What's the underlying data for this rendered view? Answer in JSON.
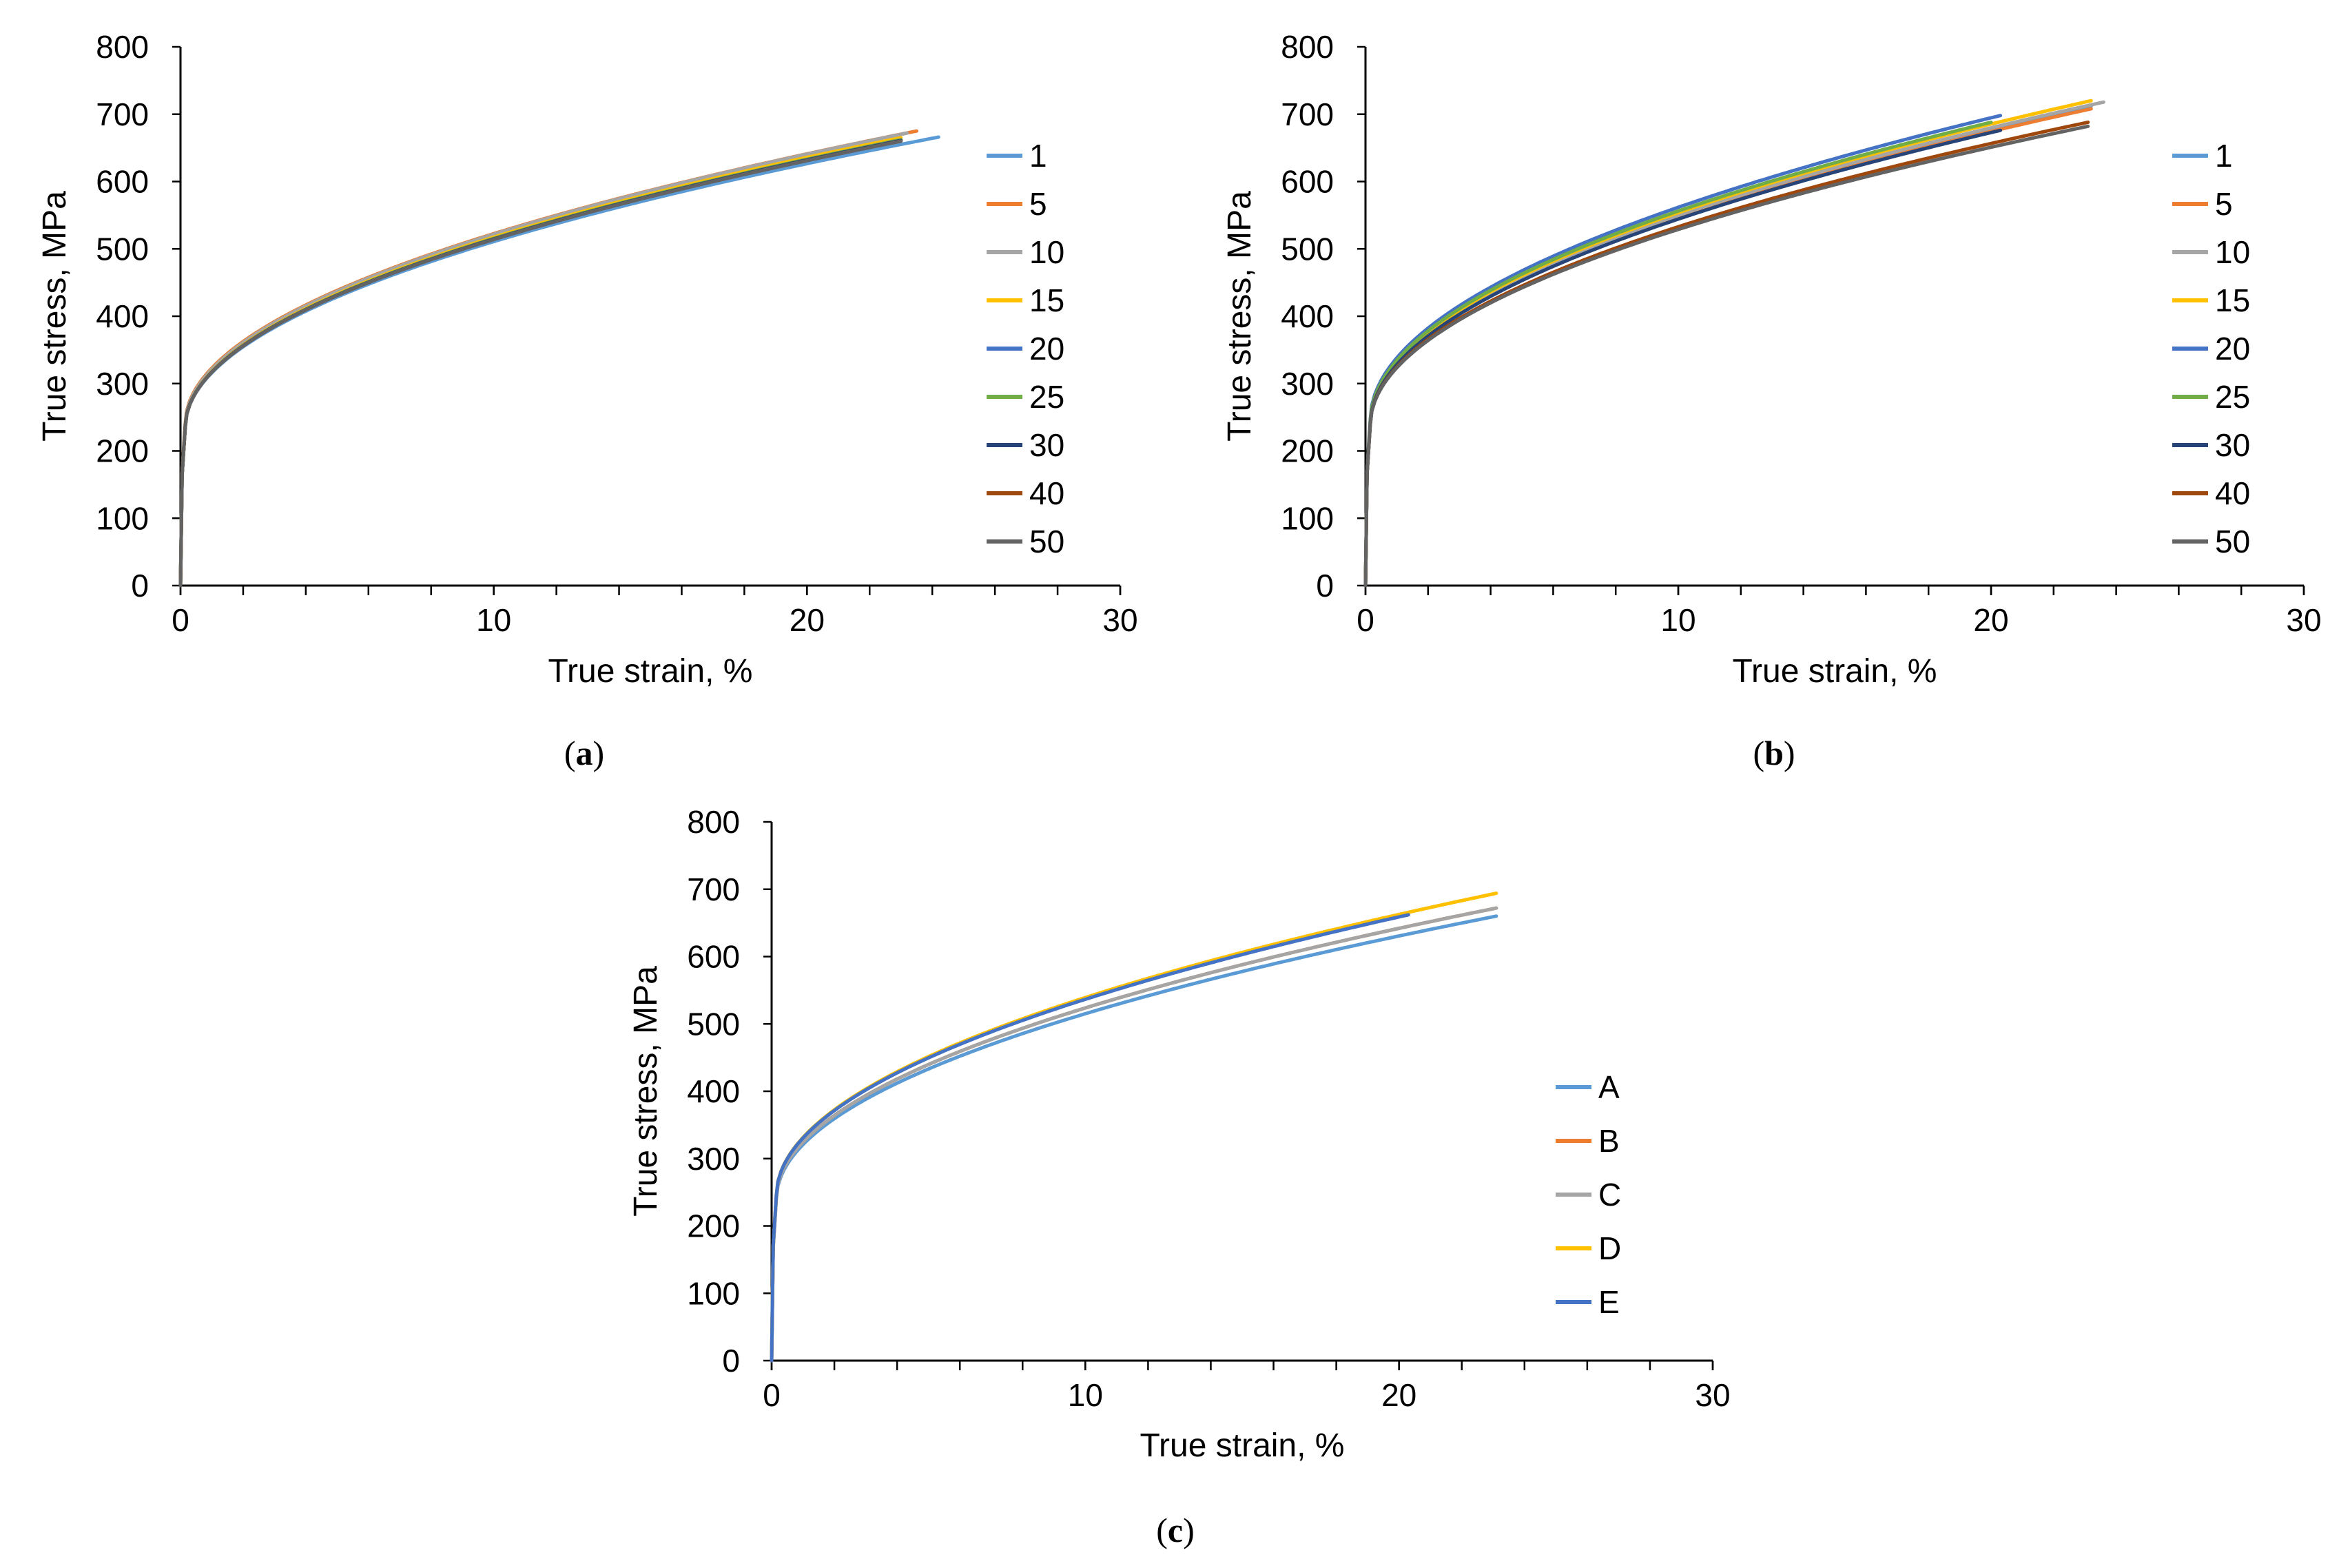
{
  "figure": {
    "panels": [
      {
        "id": "a",
        "caption_open": "(",
        "caption_letter": "a",
        "caption_close": ")"
      },
      {
        "id": "b",
        "caption_open": "(",
        "caption_letter": "b",
        "caption_close": ")"
      },
      {
        "id": "c",
        "caption_open": "(",
        "caption_letter": "c",
        "caption_close": ")"
      }
    ]
  },
  "colors": {
    "axis": "#000000",
    "series": {
      "blue": "#5B9BD5",
      "orange": "#ED7D31",
      "gray": "#A5A5A5",
      "yellow": "#FFC000",
      "darkblue": "#4472C4",
      "green": "#70AD47",
      "navy": "#264478",
      "brown": "#9E480E",
      "darkgray": "#636363"
    }
  },
  "chart_data": [
    {
      "type": "line",
      "panel": "a",
      "title": "",
      "xlabel": "True strain, %",
      "ylabel": "True stress, MPa",
      "xlim": [
        0,
        30
      ],
      "ylim": [
        0,
        800
      ],
      "xticks": [
        0,
        10,
        20,
        30
      ],
      "yticks": [
        0,
        100,
        200,
        300,
        400,
        500,
        600,
        700,
        800
      ],
      "x_minor_step": 2,
      "grid": false,
      "legend": "right",
      "series": [
        {
          "name": "1",
          "color": "#5B9BD5",
          "yield": 235,
          "end_x": 24.2,
          "end_y": 666
        },
        {
          "name": "5",
          "color": "#ED7D31",
          "yield": 240,
          "end_x": 23.5,
          "end_y": 675
        },
        {
          "name": "10",
          "color": "#A5A5A5",
          "yield": 238,
          "end_x": 23.2,
          "end_y": 672
        },
        {
          "name": "15",
          "color": "#FFC000",
          "yield": 235,
          "end_x": 23.0,
          "end_y": 665
        },
        {
          "name": "20",
          "color": "#4472C4",
          "yield": 235,
          "end_x": 23.0,
          "end_y": 662
        },
        {
          "name": "25",
          "color": "#70AD47",
          "yield": 235,
          "end_x": 23.0,
          "end_y": 662
        },
        {
          "name": "30",
          "color": "#264478",
          "yield": 235,
          "end_x": 23.0,
          "end_y": 661
        },
        {
          "name": "40",
          "color": "#9E480E",
          "yield": 235,
          "end_x": 23.0,
          "end_y": 660
        },
        {
          "name": "50",
          "color": "#636363",
          "yield": 235,
          "end_x": 23.0,
          "end_y": 660
        }
      ]
    },
    {
      "type": "line",
      "panel": "b",
      "title": "",
      "xlabel": "True strain, %",
      "ylabel": "True stress, MPa",
      "xlim": [
        0,
        30
      ],
      "ylim": [
        0,
        800
      ],
      "xticks": [
        0,
        10,
        20,
        30
      ],
      "yticks": [
        0,
        100,
        200,
        300,
        400,
        500,
        600,
        700,
        800
      ],
      "x_minor_step": 2,
      "grid": false,
      "legend": "right",
      "series": [
        {
          "name": "1",
          "color": "#5B9BD5",
          "yield": 240,
          "end_x": 23.2,
          "end_y": 712
        },
        {
          "name": "5",
          "color": "#ED7D31",
          "yield": 240,
          "end_x": 23.2,
          "end_y": 708
        },
        {
          "name": "10",
          "color": "#A5A5A5",
          "yield": 240,
          "end_x": 23.6,
          "end_y": 718
        },
        {
          "name": "15",
          "color": "#FFC000",
          "yield": 240,
          "end_x": 23.2,
          "end_y": 720
        },
        {
          "name": "20",
          "color": "#4472C4",
          "yield": 245,
          "end_x": 20.3,
          "end_y": 698
        },
        {
          "name": "25",
          "color": "#70AD47",
          "yield": 242,
          "end_x": 20.0,
          "end_y": 688
        },
        {
          "name": "30",
          "color": "#264478",
          "yield": 238,
          "end_x": 20.3,
          "end_y": 676
        },
        {
          "name": "40",
          "color": "#9E480E",
          "yield": 238,
          "end_x": 23.1,
          "end_y": 688
        },
        {
          "name": "50",
          "color": "#636363",
          "yield": 238,
          "end_x": 23.1,
          "end_y": 682
        }
      ]
    },
    {
      "type": "line",
      "panel": "c",
      "title": "",
      "xlabel": "True strain, %",
      "ylabel": "True stress, MPa",
      "xlim": [
        0,
        30
      ],
      "ylim": [
        0,
        800
      ],
      "xticks": [
        0,
        10,
        20,
        30
      ],
      "yticks": [
        0,
        100,
        200,
        300,
        400,
        500,
        600,
        700,
        800
      ],
      "x_minor_step": 2,
      "grid": false,
      "legend": "right",
      "series": [
        {
          "name": "A",
          "color": "#5B9BD5",
          "yield": 240,
          "end_x": 23.1,
          "end_y": 660
        },
        {
          "name": "B",
          "color": "#ED7D31",
          "yield": 242,
          "end_x": 23.1,
          "end_y": 672
        },
        {
          "name": "C",
          "color": "#A5A5A5",
          "yield": 242,
          "end_x": 23.1,
          "end_y": 672
        },
        {
          "name": "D",
          "color": "#FFC000",
          "yield": 245,
          "end_x": 23.1,
          "end_y": 694
        },
        {
          "name": "E",
          "color": "#4472C4",
          "yield": 245,
          "end_x": 20.3,
          "end_y": 662
        }
      ]
    }
  ]
}
